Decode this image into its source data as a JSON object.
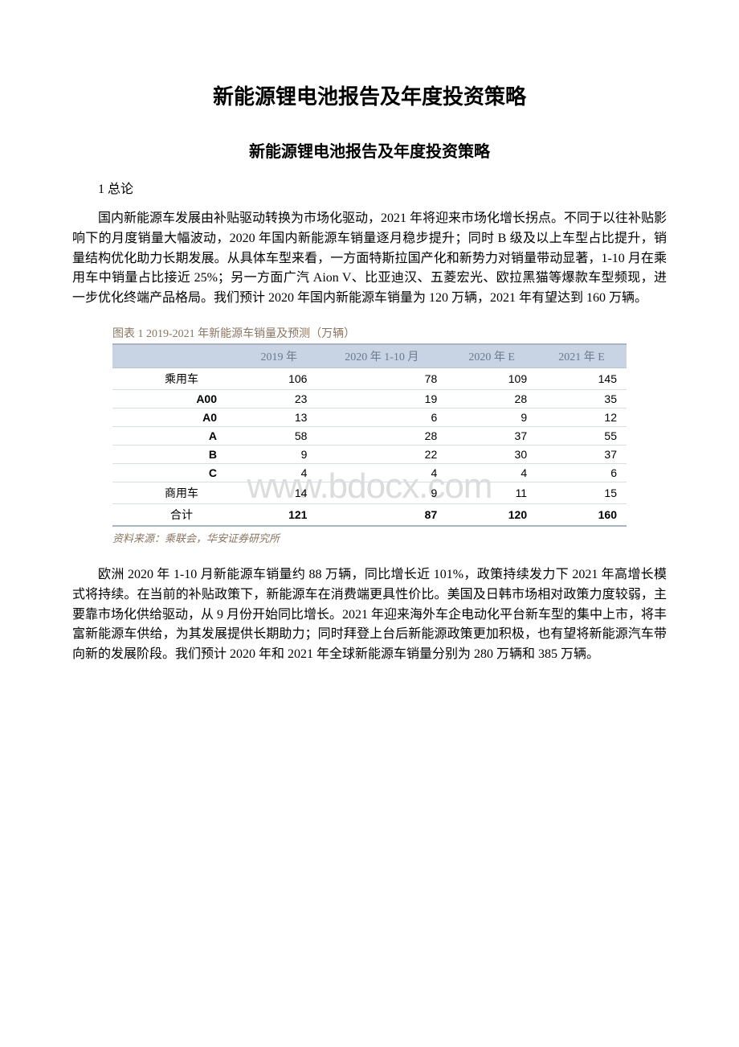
{
  "title": "新能源锂电池报告及年度投资策略",
  "subtitle": "新能源锂电池报告及年度投资策略",
  "section_heading": "1 总论",
  "paragraph1": "国内新能源车发展由补贴驱动转换为市场化驱动，2021 年将迎来市场化增长拐点。不同于以往补贴影响下的月度销量大幅波动，2020 年国内新能源车销量逐月稳步提升；同时 B 级及以上车型占比提升，销量结构优化助力长期发展。从具体车型来看，一方面特斯拉国产化和新势力对销量带动显著，1-10 月在乘用车中销量占比接近 25%；另一方面广汽 Aion V、比亚迪汉、五菱宏光、欧拉黑猫等爆款车型频现，进一步优化终端产品格局。我们预计 2020 年国内新能源车销量为 120 万辆，2021 年有望达到 160 万辆。",
  "table": {
    "caption": "图表 1 2019-2021 年新能源车销量及预测（万辆）",
    "source": "资料来源：乘联会，华安证券研究所",
    "columns": [
      "",
      "2019 年",
      "2020 年 1-10 月",
      "2020 年 E",
      "2021 年 E"
    ],
    "rows": [
      {
        "type": "main",
        "cells": [
          "乘用车",
          "106",
          "78",
          "109",
          "145"
        ]
      },
      {
        "type": "sub",
        "cells": [
          "A00",
          "23",
          "19",
          "28",
          "35"
        ]
      },
      {
        "type": "sub",
        "cells": [
          "A0",
          "13",
          "6",
          "9",
          "12"
        ]
      },
      {
        "type": "sub",
        "cells": [
          "A",
          "58",
          "28",
          "37",
          "55"
        ]
      },
      {
        "type": "sub",
        "cells": [
          "B",
          "9",
          "22",
          "30",
          "37"
        ]
      },
      {
        "type": "sub",
        "cells": [
          "C",
          "4",
          "4",
          "4",
          "6"
        ]
      },
      {
        "type": "main",
        "cells": [
          "商用车",
          "14",
          "9",
          "11",
          "15"
        ]
      },
      {
        "type": "total",
        "cells": [
          "合计",
          "121",
          "87",
          "120",
          "160"
        ]
      }
    ],
    "header_bg": "#c8d4e3",
    "header_text_color": "#6b7a8f",
    "border_color": "#aab5c4",
    "row_border_color": "#d8dee8"
  },
  "paragraph2": "欧洲 2020 年 1-10 月新能源车销量约 88 万辆，同比增长近 101%，政策持续发力下 2021 年高增长模式将持续。在当前的补贴政策下，新能源车在消费端更具性价比。美国及日韩市场相对政策力度较弱，主要靠市场化供给驱动，从 9 月份开始同比增长。2021 年迎来海外车企电动化平台新车型的集中上市，将丰富新能源车供给，为其发展提供长期助力；同时拜登上台后新能源政策更加积极，也有望将新能源汽车带向新的发展阶段。我们预计 2020 年和 2021 年全球新能源车销量分别为 280 万辆和 385 万辆。",
  "watermark": "www.bdocx.com"
}
